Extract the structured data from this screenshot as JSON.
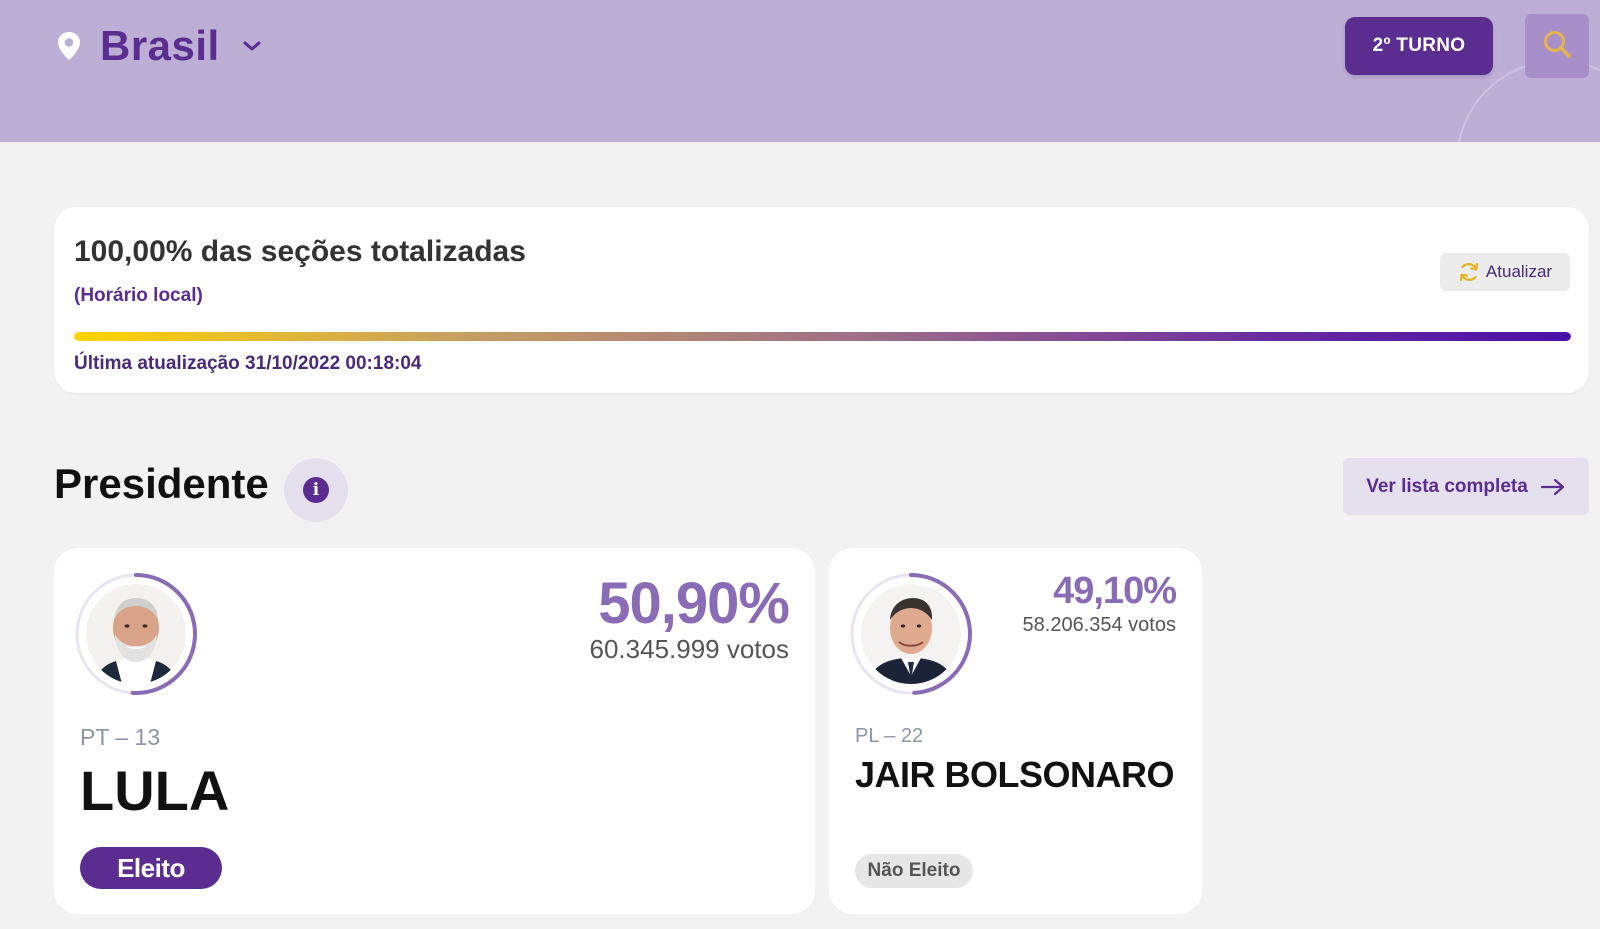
{
  "header": {
    "location": "Brasil",
    "turno_label": "2º TURNO"
  },
  "progress": {
    "title": "100,00% das seções totalizadas",
    "subtitle": "(Horário local)",
    "refresh_label": "Atualizar",
    "last_update": "Última atualização 31/10/2022 00:18:04",
    "completion": 1.0
  },
  "section": {
    "title": "Presidente",
    "list_button": "Ver lista completa"
  },
  "candidates": [
    {
      "percent": "50,90%",
      "votes": "60.345.999 votos",
      "party": "PT – 13",
      "name": "LULA",
      "status": "Eleito",
      "share": 0.509
    },
    {
      "percent": "49,10%",
      "votes": "58.206.354 votos",
      "party": "PL – 22",
      "name": "JAIR BOLSONARO",
      "status": "Não Eleito",
      "share": 0.491
    }
  ],
  "colors": {
    "header_bg": "#bdaed6",
    "brand_purple": "#5b2d90",
    "percent_purple": "#8a6cb6"
  }
}
